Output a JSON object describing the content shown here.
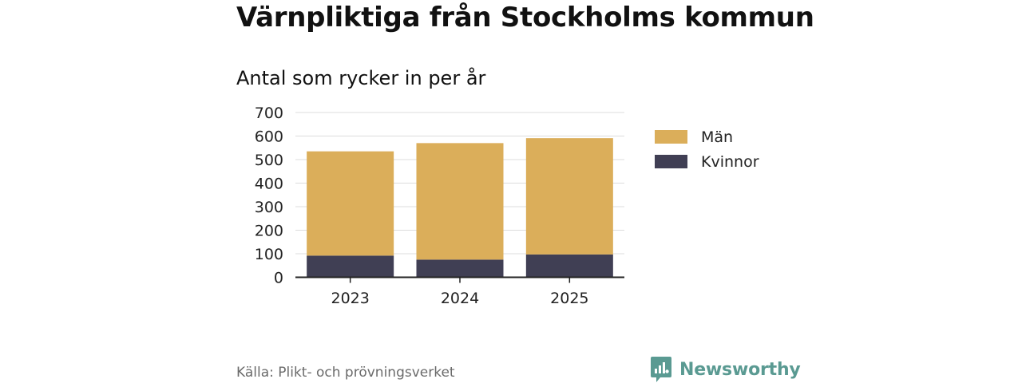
{
  "chart_data": {
    "type": "bar",
    "stacked": true,
    "title": "Värnpliktiga från Stockholms kommun",
    "subtitle": "Antal som rycker in per år",
    "categories": [
      "2023",
      "2024",
      "2025"
    ],
    "series": [
      {
        "name": "Kvinnor",
        "values": [
          92,
          75,
          97
        ],
        "color": "#403f54"
      },
      {
        "name": "Män",
        "values": [
          443,
          495,
          494
        ],
        "color": "#dbae5a"
      }
    ],
    "ylim": [
      0,
      700
    ],
    "yticks": [
      "0",
      "100",
      "200",
      "300",
      "400",
      "500",
      "600",
      "700"
    ],
    "grid": true,
    "legend_position": "right",
    "legend_order": [
      "Män",
      "Kvinnor"
    ]
  },
  "footer": {
    "source": "Källa: Plikt- och prövningsverket",
    "brand": "Newsworthy",
    "brand_color": "#5a9a92"
  }
}
